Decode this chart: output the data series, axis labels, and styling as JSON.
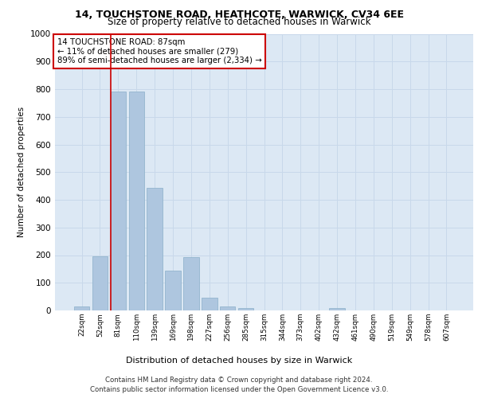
{
  "title_line1": "14, TOUCHSTONE ROAD, HEATHCOTE, WARWICK, CV34 6EE",
  "title_line2": "Size of property relative to detached houses in Warwick",
  "xlabel": "Distribution of detached houses by size in Warwick",
  "ylabel": "Number of detached properties",
  "categories": [
    "22sqm",
    "52sqm",
    "81sqm",
    "110sqm",
    "139sqm",
    "169sqm",
    "198sqm",
    "227sqm",
    "256sqm",
    "285sqm",
    "315sqm",
    "344sqm",
    "373sqm",
    "402sqm",
    "432sqm",
    "461sqm",
    "490sqm",
    "519sqm",
    "549sqm",
    "578sqm",
    "607sqm"
  ],
  "values": [
    13,
    195,
    790,
    790,
    443,
    143,
    193,
    47,
    13,
    10,
    0,
    0,
    0,
    0,
    10,
    0,
    0,
    0,
    0,
    0,
    0
  ],
  "bar_color": "#aec6df",
  "bar_edge_color": "#8aafc8",
  "vline_color": "#cc0000",
  "annotation_box_text": "14 TOUCHSTONE ROAD: 87sqm\n← 11% of detached houses are smaller (279)\n89% of semi-detached houses are larger (2,334) →",
  "annotation_box_color": "#cc0000",
  "annotation_box_facecolor": "white",
  "ylim": [
    0,
    1000
  ],
  "yticks": [
    0,
    100,
    200,
    300,
    400,
    500,
    600,
    700,
    800,
    900,
    1000
  ],
  "grid_color": "#c8d8ea",
  "background_color": "#dce8f4",
  "footer_line1": "Contains HM Land Registry data © Crown copyright and database right 2024.",
  "footer_line2": "Contains public sector information licensed under the Open Government Licence v3.0."
}
